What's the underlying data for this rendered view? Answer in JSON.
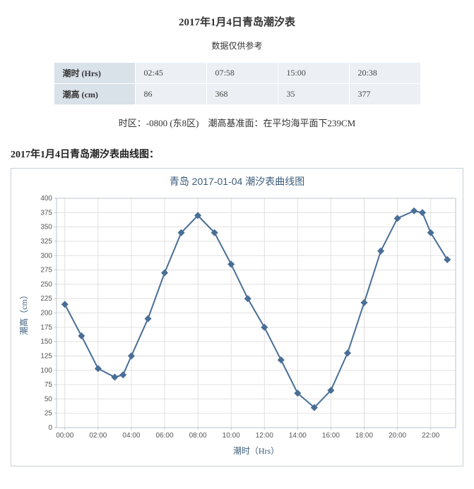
{
  "page": {
    "title": "2017年1月4日青岛潮汐表",
    "subtitle": "数据仅供参考",
    "note": "时区：-0800 (东8区)　潮高基准面：在平均海平面下239CM",
    "section": "2017年1月4日青岛潮汐表曲线图："
  },
  "table": {
    "row1_label": "潮时 (Hrs)",
    "row2_label": "潮高 (cm)",
    "times": [
      "02:45",
      "07:58",
      "15:00",
      "20:38"
    ],
    "heights": [
      "86",
      "368",
      "35",
      "377"
    ],
    "header_bg": "#d9e1e9",
    "cell_bg": "#ecf0f4"
  },
  "chart": {
    "title": "青岛 2017-01-04 潮汐表曲线图",
    "type": "line",
    "xlabel": "潮时（Hrs）",
    "ylabel": "潮高（cm）",
    "ylim": [
      0,
      400
    ],
    "ytick_step": 25,
    "xticks": [
      "00:00",
      "02:00",
      "04:00",
      "06:00",
      "08:00",
      "10:00",
      "12:00",
      "14:00",
      "16:00",
      "18:00",
      "20:00",
      "22:00"
    ],
    "x_hours": [
      0,
      1,
      2,
      3,
      4,
      5,
      6,
      7,
      8,
      9,
      10,
      11,
      12,
      13,
      14,
      15,
      16,
      17,
      18,
      19,
      20,
      21,
      22,
      23
    ],
    "y_values": [
      215,
      160,
      103,
      88,
      92,
      125,
      190,
      270,
      340,
      370,
      340,
      285,
      225,
      175,
      118,
      60,
      35,
      65,
      130,
      218,
      308,
      365,
      378,
      375,
      340,
      293
    ],
    "points_x": [
      0,
      1,
      2,
      3,
      3.5,
      4,
      5,
      6,
      7,
      8,
      9,
      10,
      11,
      12,
      13,
      14,
      15,
      16,
      17,
      18,
      19,
      20,
      21,
      21.5,
      22,
      23
    ],
    "line_color": "#4a6f96",
    "marker_fill": "#4a6f96",
    "marker_stroke": "#4a6f96",
    "grid_color": "#e0e0e0",
    "axis_color": "#b9c4cf",
    "background": "#ffffff",
    "label_color": "#3b5c7a"
  }
}
